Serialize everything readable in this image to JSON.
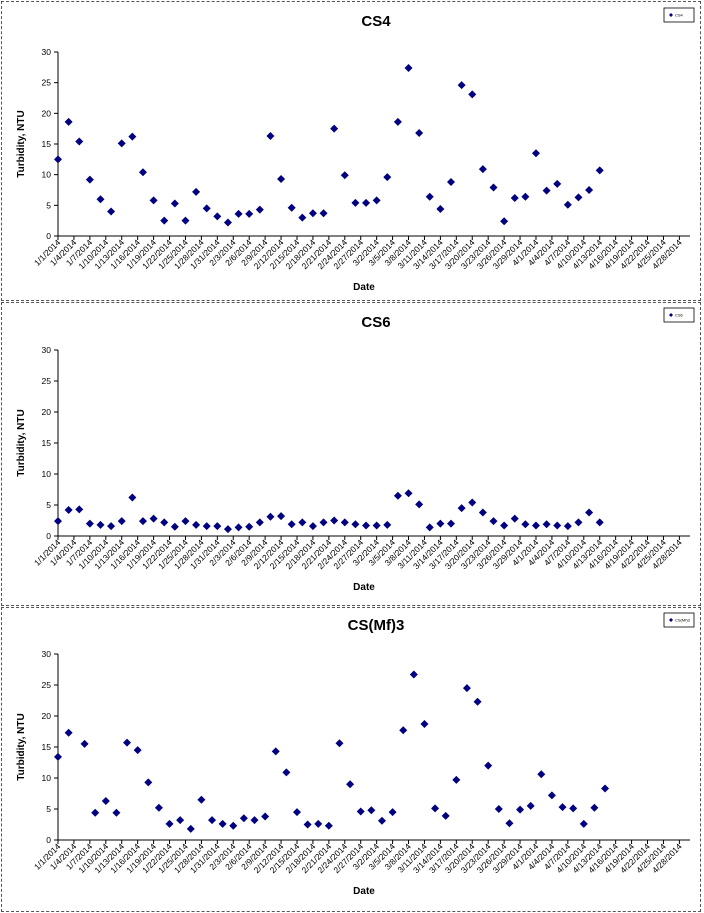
{
  "chart_data": [
    {
      "type": "scatter",
      "title": "CS4",
      "xlabel": "Date",
      "ylabel": "Turbidity, NTU",
      "ylim": [
        0,
        30
      ],
      "yticks": [
        0,
        5,
        10,
        15,
        20,
        25,
        30
      ],
      "xlim": [
        "1/1/2014",
        "4/30/2014"
      ],
      "xtick_labels": [
        "1/1/2014",
        "1/4/2014",
        "1/7/2014",
        "1/10/2014",
        "1/13/2014",
        "1/16/2014",
        "1/19/2014",
        "1/22/2014",
        "1/25/2014",
        "1/28/2014",
        "1/31/2014",
        "2/3/2014",
        "2/6/2014",
        "2/9/2014",
        "2/12/2014",
        "2/15/2014",
        "2/18/2014",
        "2/21/2014",
        "2/24/2014",
        "2/27/2014",
        "3/2/2014",
        "3/5/2014",
        "3/8/2014",
        "3/11/2014",
        "3/14/2014",
        "3/17/2014",
        "3/20/2014",
        "3/23/2014",
        "3/26/2014",
        "3/29/2014",
        "4/1/2014",
        "4/4/2014",
        "4/7/2014",
        "4/10/2014",
        "4/13/2014",
        "4/16/2014",
        "4/19/2014",
        "4/22/2014",
        "4/25/2014",
        "4/28/2014"
      ],
      "legend_position": "top-right",
      "grid": false,
      "series": [
        {
          "name": "CS4",
          "color": "#000080",
          "marker": "diamond",
          "points": [
            {
              "x": "1/1/2014",
              "y": 12.5
            },
            {
              "x": "1/3/2014",
              "y": 18.6
            },
            {
              "x": "1/5/2014",
              "y": 15.4
            },
            {
              "x": "1/7/2014",
              "y": 9.2
            },
            {
              "x": "1/9/2014",
              "y": 6.0
            },
            {
              "x": "1/11/2014",
              "y": 4.0
            },
            {
              "x": "1/13/2014",
              "y": 15.1
            },
            {
              "x": "1/15/2014",
              "y": 16.2
            },
            {
              "x": "1/17/2014",
              "y": 10.4
            },
            {
              "x": "1/19/2014",
              "y": 5.8
            },
            {
              "x": "1/21/2014",
              "y": 2.5
            },
            {
              "x": "1/23/2014",
              "y": 5.3
            },
            {
              "x": "1/25/2014",
              "y": 2.5
            },
            {
              "x": "1/27/2014",
              "y": 7.2
            },
            {
              "x": "1/29/2014",
              "y": 4.5
            },
            {
              "x": "1/31/2014",
              "y": 3.2
            },
            {
              "x": "2/2/2014",
              "y": 2.2
            },
            {
              "x": "2/4/2014",
              "y": 3.6
            },
            {
              "x": "2/6/2014",
              "y": 3.6
            },
            {
              "x": "2/8/2014",
              "y": 4.3
            },
            {
              "x": "2/10/2014",
              "y": 16.3
            },
            {
              "x": "2/12/2014",
              "y": 9.3
            },
            {
              "x": "2/14/2014",
              "y": 4.6
            },
            {
              "x": "2/16/2014",
              "y": 3.0
            },
            {
              "x": "2/18/2014",
              "y": 3.7
            },
            {
              "x": "2/20/2014",
              "y": 3.7
            },
            {
              "x": "2/22/2014",
              "y": 17.5
            },
            {
              "x": "2/24/2014",
              "y": 9.9
            },
            {
              "x": "2/26/2014",
              "y": 5.4
            },
            {
              "x": "2/28/2014",
              "y": 5.4
            },
            {
              "x": "3/2/2014",
              "y": 5.8
            },
            {
              "x": "3/4/2014",
              "y": 9.6
            },
            {
              "x": "3/6/2014",
              "y": 18.6
            },
            {
              "x": "3/8/2014",
              "y": 27.4
            },
            {
              "x": "3/10/2014",
              "y": 16.8
            },
            {
              "x": "3/12/2014",
              "y": 6.4
            },
            {
              "x": "3/14/2014",
              "y": 4.4
            },
            {
              "x": "3/16/2014",
              "y": 8.8
            },
            {
              "x": "3/18/2014",
              "y": 24.6
            },
            {
              "x": "3/20/2014",
              "y": 23.1
            },
            {
              "x": "3/22/2014",
              "y": 10.9
            },
            {
              "x": "3/24/2014",
              "y": 7.9
            },
            {
              "x": "3/26/2014",
              "y": 2.4
            },
            {
              "x": "3/28/2014",
              "y": 6.2
            },
            {
              "x": "3/30/2014",
              "y": 6.4
            },
            {
              "x": "4/1/2014",
              "y": 13.5
            },
            {
              "x": "4/3/2014",
              "y": 7.4
            },
            {
              "x": "4/5/2014",
              "y": 8.5
            },
            {
              "x": "4/7/2014",
              "y": 5.1
            },
            {
              "x": "4/9/2014",
              "y": 6.3
            },
            {
              "x": "4/11/2014",
              "y": 7.5
            },
            {
              "x": "4/13/2014",
              "y": 10.7
            }
          ]
        }
      ]
    },
    {
      "type": "scatter",
      "title": "CS6",
      "xlabel": "Date",
      "ylabel": "Turbidity, NTU",
      "ylim": [
        0,
        30
      ],
      "yticks": [
        0,
        5,
        10,
        15,
        20,
        25,
        30
      ],
      "xlim": [
        "1/1/2014",
        "4/30/2014"
      ],
      "xtick_labels": [
        "1/1/2014",
        "1/4/2014",
        "1/7/2014",
        "1/10/2014",
        "1/13/2014",
        "1/16/2014",
        "1/19/2014",
        "1/22/2014",
        "1/25/2014",
        "1/28/2014",
        "1/31/2014",
        "2/3/2014",
        "2/6/2014",
        "2/9/2014",
        "2/12/2014",
        "2/15/2014",
        "2/18/2014",
        "2/21/2014",
        "2/24/2014",
        "2/27/2014",
        "3/2/2014",
        "3/5/2014",
        "3/8/2014",
        "3/11/2014",
        "3/14/2014",
        "3/17/2014",
        "3/20/2014",
        "3/23/2014",
        "3/26/2014",
        "3/29/2014",
        "4/1/2014",
        "4/4/2014",
        "4/7/2014",
        "4/10/2014",
        "4/13/2014",
        "4/16/2014",
        "4/19/2014",
        "4/22/2014",
        "4/25/2014",
        "4/28/2014"
      ],
      "legend_position": "top-right",
      "grid": false,
      "series": [
        {
          "name": "CS6",
          "color": "#000080",
          "marker": "diamond",
          "points": [
            {
              "x": "1/1/2014",
              "y": 2.4
            },
            {
              "x": "1/3/2014",
              "y": 4.2
            },
            {
              "x": "1/5/2014",
              "y": 4.3
            },
            {
              "x": "1/7/2014",
              "y": 2.0
            },
            {
              "x": "1/9/2014",
              "y": 1.8
            },
            {
              "x": "1/11/2014",
              "y": 1.6
            },
            {
              "x": "1/13/2014",
              "y": 2.4
            },
            {
              "x": "1/15/2014",
              "y": 6.2
            },
            {
              "x": "1/17/2014",
              "y": 2.4
            },
            {
              "x": "1/19/2014",
              "y": 2.8
            },
            {
              "x": "1/21/2014",
              "y": 2.2
            },
            {
              "x": "1/23/2014",
              "y": 1.5
            },
            {
              "x": "1/25/2014",
              "y": 2.4
            },
            {
              "x": "1/27/2014",
              "y": 1.8
            },
            {
              "x": "1/29/2014",
              "y": 1.6
            },
            {
              "x": "1/31/2014",
              "y": 1.6
            },
            {
              "x": "2/2/2014",
              "y": 1.1
            },
            {
              "x": "2/4/2014",
              "y": 1.4
            },
            {
              "x": "2/6/2014",
              "y": 1.5
            },
            {
              "x": "2/8/2014",
              "y": 2.2
            },
            {
              "x": "2/10/2014",
              "y": 3.1
            },
            {
              "x": "2/12/2014",
              "y": 3.2
            },
            {
              "x": "2/14/2014",
              "y": 1.9
            },
            {
              "x": "2/16/2014",
              "y": 2.2
            },
            {
              "x": "2/18/2014",
              "y": 1.6
            },
            {
              "x": "2/20/2014",
              "y": 2.2
            },
            {
              "x": "2/22/2014",
              "y": 2.5
            },
            {
              "x": "2/24/2014",
              "y": 2.2
            },
            {
              "x": "2/26/2014",
              "y": 1.9
            },
            {
              "x": "2/28/2014",
              "y": 1.7
            },
            {
              "x": "3/2/2014",
              "y": 1.7
            },
            {
              "x": "3/4/2014",
              "y": 1.8
            },
            {
              "x": "3/6/2014",
              "y": 6.5
            },
            {
              "x": "3/8/2014",
              "y": 6.9
            },
            {
              "x": "3/10/2014",
              "y": 5.1
            },
            {
              "x": "3/12/2014",
              "y": 1.4
            },
            {
              "x": "3/14/2014",
              "y": 2.0
            },
            {
              "x": "3/16/2014",
              "y": 2.0
            },
            {
              "x": "3/18/2014",
              "y": 4.5
            },
            {
              "x": "3/20/2014",
              "y": 5.4
            },
            {
              "x": "3/22/2014",
              "y": 3.8
            },
            {
              "x": "3/24/2014",
              "y": 2.4
            },
            {
              "x": "3/26/2014",
              "y": 1.7
            },
            {
              "x": "3/28/2014",
              "y": 2.8
            },
            {
              "x": "3/30/2014",
              "y": 1.9
            },
            {
              "x": "4/1/2014",
              "y": 1.7
            },
            {
              "x": "4/3/2014",
              "y": 1.9
            },
            {
              "x": "4/5/2014",
              "y": 1.7
            },
            {
              "x": "4/7/2014",
              "y": 1.6
            },
            {
              "x": "4/9/2014",
              "y": 2.2
            },
            {
              "x": "4/11/2014",
              "y": 3.8
            },
            {
              "x": "4/13/2014",
              "y": 2.2
            }
          ]
        }
      ]
    },
    {
      "type": "scatter",
      "title": "CS(Mf)3",
      "xlabel": "Date",
      "ylabel": "Turbidity, NTU",
      "ylim": [
        0,
        30
      ],
      "yticks": [
        0,
        5,
        10,
        15,
        20,
        25,
        30
      ],
      "xlim": [
        "1/1/2014",
        "4/30/2014"
      ],
      "xtick_labels": [
        "1/1/2014",
        "1/4/2014",
        "1/7/2014",
        "1/10/2014",
        "1/13/2014",
        "1/16/2014",
        "1/19/2014",
        "1/22/2014",
        "1/25/2014",
        "1/28/2014",
        "1/31/2014",
        "2/3/2014",
        "2/6/2014",
        "2/9/2014",
        "2/12/2014",
        "2/15/2014",
        "2/18/2014",
        "2/21/2014",
        "2/24/2014",
        "2/27/2014",
        "3/2/2014",
        "3/5/2014",
        "3/8/2014",
        "3/11/2014",
        "3/14/2014",
        "3/17/2014",
        "3/20/2014",
        "3/23/2014",
        "3/26/2014",
        "3/29/2014",
        "4/1/2014",
        "4/4/2014",
        "4/7/2014",
        "4/10/2014",
        "4/13/2014",
        "4/16/2014",
        "4/19/2014",
        "4/22/2014",
        "4/25/2014",
        "4/28/2014"
      ],
      "legend_position": "top-right",
      "grid": false,
      "series": [
        {
          "name": "CS(Mf)3",
          "color": "#000080",
          "marker": "diamond",
          "points": [
            {
              "x": "1/1/2014",
              "y": 13.4
            },
            {
              "x": "1/3/2014",
              "y": 17.3
            },
            {
              "x": "1/6/2014",
              "y": 15.5
            },
            {
              "x": "1/8/2014",
              "y": 4.4
            },
            {
              "x": "1/10/2014",
              "y": 6.3
            },
            {
              "x": "1/12/2014",
              "y": 4.4
            },
            {
              "x": "1/14/2014",
              "y": 15.7
            },
            {
              "x": "1/16/2014",
              "y": 14.5
            },
            {
              "x": "1/18/2014",
              "y": 9.3
            },
            {
              "x": "1/20/2014",
              "y": 5.2
            },
            {
              "x": "1/22/2014",
              "y": 2.6
            },
            {
              "x": "1/24/2014",
              "y": 3.2
            },
            {
              "x": "1/26/2014",
              "y": 1.8
            },
            {
              "x": "1/28/2014",
              "y": 6.5
            },
            {
              "x": "1/30/2014",
              "y": 3.2
            },
            {
              "x": "2/1/2014",
              "y": 2.6
            },
            {
              "x": "2/3/2014",
              "y": 2.3
            },
            {
              "x": "2/5/2014",
              "y": 3.5
            },
            {
              "x": "2/7/2014",
              "y": 3.2
            },
            {
              "x": "2/9/2014",
              "y": 3.8
            },
            {
              "x": "2/11/2014",
              "y": 14.3
            },
            {
              "x": "2/13/2014",
              "y": 10.9
            },
            {
              "x": "2/15/2014",
              "y": 4.5
            },
            {
              "x": "2/17/2014",
              "y": 2.5
            },
            {
              "x": "2/19/2014",
              "y": 2.6
            },
            {
              "x": "2/21/2014",
              "y": 2.3
            },
            {
              "x": "2/23/2014",
              "y": 15.6
            },
            {
              "x": "2/25/2014",
              "y": 9.0
            },
            {
              "x": "2/27/2014",
              "y": 4.6
            },
            {
              "x": "3/1/2014",
              "y": 4.8
            },
            {
              "x": "3/3/2014",
              "y": 3.1
            },
            {
              "x": "3/5/2014",
              "y": 4.5
            },
            {
              "x": "3/7/2014",
              "y": 17.7
            },
            {
              "x": "3/9/2014",
              "y": 26.7
            },
            {
              "x": "3/11/2014",
              "y": 18.7
            },
            {
              "x": "3/13/2014",
              "y": 5.1
            },
            {
              "x": "3/15/2014",
              "y": 3.9
            },
            {
              "x": "3/17/2014",
              "y": 9.7
            },
            {
              "x": "3/19/2014",
              "y": 24.5
            },
            {
              "x": "3/21/2014",
              "y": 22.3
            },
            {
              "x": "3/23/2014",
              "y": 12.0
            },
            {
              "x": "3/25/2014",
              "y": 5.0
            },
            {
              "x": "3/27/2014",
              "y": 2.7
            },
            {
              "x": "3/29/2014",
              "y": 4.9
            },
            {
              "x": "3/31/2014",
              "y": 5.5
            },
            {
              "x": "4/2/2014",
              "y": 10.6
            },
            {
              "x": "4/4/2014",
              "y": 7.2
            },
            {
              "x": "4/6/2014",
              "y": 5.3
            },
            {
              "x": "4/8/2014",
              "y": 5.1
            },
            {
              "x": "4/10/2014",
              "y": 2.6
            },
            {
              "x": "4/12/2014",
              "y": 5.2
            },
            {
              "x": "4/14/2014",
              "y": 8.3
            }
          ]
        }
      ]
    }
  ]
}
